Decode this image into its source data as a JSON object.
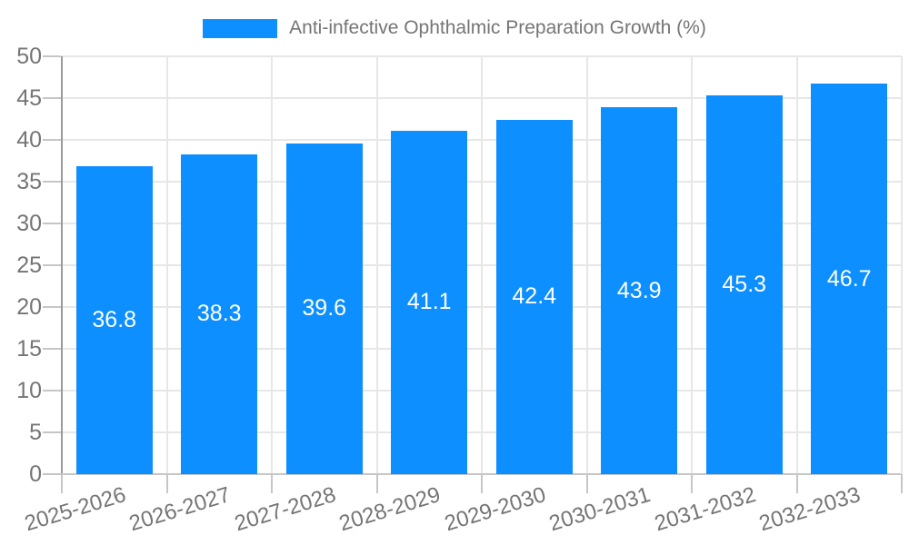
{
  "chart_data": {
    "type": "bar",
    "title": "Anti-infective Ophthalmic Preparation Growth (%)",
    "legend": [
      "Anti-infective Ophthalmic Preparation Growth (%)"
    ],
    "legend_position": "top",
    "categories": [
      "2025-2026",
      "2026-2027",
      "2027-2028",
      "2028-2029",
      "2029-2030",
      "2030-2031",
      "2031-2032",
      "2032-2033"
    ],
    "values": [
      36.8,
      38.3,
      39.6,
      41.1,
      42.4,
      43.9,
      45.3,
      46.7
    ],
    "value_labels": [
      "36.8",
      "38.3",
      "39.6",
      "41.1",
      "42.4",
      "43.9",
      "45.3",
      "46.7"
    ],
    "xlabel": "",
    "ylabel": "",
    "ylim": [
      0,
      50
    ],
    "yticks": [
      "0",
      "5",
      "10",
      "15",
      "20",
      "25",
      "30",
      "35",
      "40",
      "45",
      "50"
    ],
    "grid": true,
    "xtick_rotation_deg": -17,
    "colors": {
      "bar": "#0D8FFF",
      "bar_value_text": "#FFFFFF",
      "axis_text": "#757575",
      "grid_line": "#E7E7E7",
      "tick_line": "#C6C6C6",
      "y_axis_line": "#9A9A9A",
      "x_axis_line": "#C6C6C6",
      "background": "#FFFFFF"
    }
  }
}
